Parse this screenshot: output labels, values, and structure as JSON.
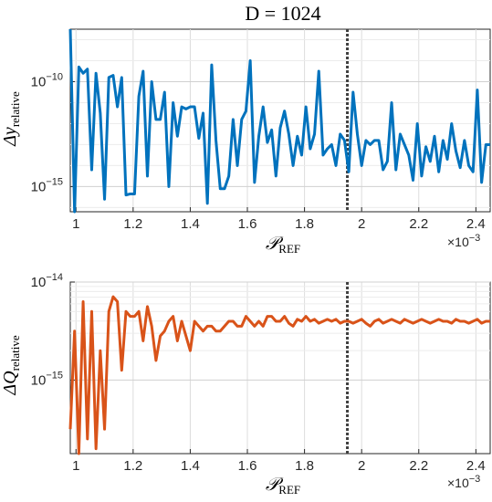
{
  "title": "D = 1024",
  "chart_data": [
    {
      "type": "line",
      "ylabel": "Δy_relative",
      "xlabel": "𝒫_REF",
      "x_exponent": "×10^-3",
      "yscale": "log",
      "xlim": [
        0.98,
        2.45
      ],
      "ylim_log10": [
        -16.2,
        -7.5
      ],
      "ytick_labels": [
        "10^-10",
        "10^-15"
      ],
      "xtick_labels": [
        "1",
        "1.2",
        "1.4",
        "1.6",
        "1.8",
        "2",
        "2.2",
        "2.4"
      ],
      "grid": true,
      "color": "#0072BD",
      "vline_x": 1.95,
      "series": [
        {
          "x": [
            0.98,
            0.995,
            1.01,
            1.025,
            1.04,
            1.055,
            1.07,
            1.085,
            1.1,
            1.115,
            1.13,
            1.145,
            1.16,
            1.175,
            1.19,
            1.205,
            1.22,
            1.235,
            1.25,
            1.265,
            1.28,
            1.295,
            1.31,
            1.325,
            1.34,
            1.355,
            1.37,
            1.385,
            1.4,
            1.415,
            1.43,
            1.445,
            1.46,
            1.475,
            1.49,
            1.505,
            1.52,
            1.535,
            1.55,
            1.565,
            1.58,
            1.595,
            1.61,
            1.625,
            1.64,
            1.655,
            1.67,
            1.685,
            1.7,
            1.715,
            1.73,
            1.745,
            1.76,
            1.775,
            1.79,
            1.805,
            1.82,
            1.835,
            1.85,
            1.865,
            1.88,
            1.895,
            1.91,
            1.925,
            1.94,
            1.955,
            1.97,
            1.985,
            2.0,
            2.015,
            2.03,
            2.045,
            2.06,
            2.075,
            2.09,
            2.105,
            2.12,
            2.135,
            2.15,
            2.165,
            2.18,
            2.195,
            2.21,
            2.225,
            2.24,
            2.255,
            2.27,
            2.285,
            2.3,
            2.315,
            2.33,
            2.345,
            2.36,
            2.375,
            2.39,
            2.405,
            2.42,
            2.435,
            2.45
          ],
          "log10_y": [
            -7.5,
            -16.2,
            -9.3,
            -9.6,
            -9.4,
            -14.2,
            -9.6,
            -11.5,
            -15.6,
            -9.8,
            -9.7,
            -11.2,
            -9.8,
            -15.4,
            -15.35,
            -15.35,
            -10.7,
            -9.5,
            -14.5,
            -10.0,
            -11.8,
            -11.8,
            -10.5,
            -15.0,
            -11.0,
            -12.6,
            -11.2,
            -11.3,
            -11.2,
            -11.2,
            -12.7,
            -11.5,
            -15.8,
            -9.2,
            -12.8,
            -15.1,
            -15.1,
            -14.5,
            -11.8,
            -14.0,
            -11.8,
            -11.4,
            -9.0,
            -14.8,
            -12.6,
            -11.2,
            -12.9,
            -12.3,
            -14.5,
            -12.2,
            -11.4,
            -12.5,
            -14.0,
            -12.6,
            -13.5,
            -11.2,
            -13.2,
            -12.5,
            -9.5,
            -13.5,
            -13.2,
            -13.0,
            -14.0,
            -12.5,
            -12.8,
            -14.3,
            -10.5,
            -12.5,
            -14.0,
            -12.8,
            -13.0,
            -12.8,
            -12.8,
            -14.2,
            -13.8,
            -11.0,
            -14.2,
            -12.5,
            -13.0,
            -13.5,
            -14.7,
            -12.0,
            -14.5,
            -13.1,
            -13.8,
            -12.6,
            -14.3,
            -12.8,
            -13.7,
            -12.0,
            -13.3,
            -14.1,
            -12.8,
            -14.0,
            -14.3,
            -10.4,
            -14.8,
            -13.0,
            -13.0
          ]
        }
      ]
    },
    {
      "type": "line",
      "ylabel": "ΔQ_relative",
      "xlabel": "𝒫_REF",
      "x_exponent": "×10^-3",
      "yscale": "log",
      "xlim": [
        0.98,
        2.45
      ],
      "ylim_log10": [
        -15.75,
        -14.0
      ],
      "ytick_labels": [
        "10^-14",
        "10^-15"
      ],
      "xtick_labels": [
        "1",
        "1.2",
        "1.4",
        "1.6",
        "1.8",
        "2",
        "2.2",
        "2.4"
      ],
      "grid": true,
      "color": "#D95319",
      "vline_x": 1.95,
      "series": [
        {
          "x": [
            0.98,
            0.995,
            1.01,
            1.025,
            1.04,
            1.055,
            1.07,
            1.085,
            1.1,
            1.115,
            1.13,
            1.145,
            1.16,
            1.175,
            1.19,
            1.205,
            1.22,
            1.235,
            1.25,
            1.265,
            1.28,
            1.295,
            1.31,
            1.325,
            1.34,
            1.355,
            1.37,
            1.385,
            1.4,
            1.415,
            1.43,
            1.445,
            1.46,
            1.475,
            1.49,
            1.505,
            1.52,
            1.535,
            1.55,
            1.565,
            1.58,
            1.595,
            1.61,
            1.625,
            1.64,
            1.655,
            1.67,
            1.685,
            1.7,
            1.715,
            1.73,
            1.745,
            1.76,
            1.775,
            1.79,
            1.805,
            1.82,
            1.835,
            1.85,
            1.865,
            1.88,
            1.895,
            1.91,
            1.925,
            1.94,
            1.955,
            1.97,
            1.985,
            2.0,
            2.015,
            2.03,
            2.045,
            2.06,
            2.075,
            2.09,
            2.105,
            2.12,
            2.135,
            2.15,
            2.165,
            2.18,
            2.195,
            2.21,
            2.225,
            2.24,
            2.255,
            2.27,
            2.285,
            2.3,
            2.315,
            2.33,
            2.345,
            2.36,
            2.375,
            2.39,
            2.405,
            2.42,
            2.435,
            2.45
          ],
          "log10_y": [
            -15.5,
            -14.5,
            -15.75,
            -14.2,
            -15.6,
            -14.3,
            -15.7,
            -14.7,
            -15.5,
            -14.3,
            -14.15,
            -14.2,
            -14.9,
            -14.3,
            -14.35,
            -14.35,
            -14.3,
            -14.6,
            -14.25,
            -14.45,
            -14.8,
            -14.55,
            -14.5,
            -14.4,
            -14.35,
            -14.6,
            -14.4,
            -14.55,
            -14.7,
            -14.4,
            -14.45,
            -14.5,
            -14.45,
            -14.45,
            -14.5,
            -14.5,
            -14.45,
            -14.4,
            -14.4,
            -14.45,
            -14.45,
            -14.35,
            -14.4,
            -14.45,
            -14.4,
            -14.45,
            -14.35,
            -14.35,
            -14.4,
            -14.4,
            -14.35,
            -14.42,
            -14.45,
            -14.38,
            -14.4,
            -14.35,
            -14.4,
            -14.38,
            -14.42,
            -14.4,
            -14.38,
            -14.4,
            -14.38,
            -14.42,
            -14.4,
            -14.4,
            -14.42,
            -14.4,
            -14.38,
            -14.42,
            -14.45,
            -14.4,
            -14.38,
            -14.42,
            -14.4,
            -14.38,
            -14.4,
            -14.42,
            -14.38,
            -14.4,
            -14.42,
            -14.4,
            -14.38,
            -14.4,
            -14.42,
            -14.4,
            -14.38,
            -14.4,
            -14.4,
            -14.42,
            -14.38,
            -14.4,
            -14.4,
            -14.42,
            -14.4,
            -14.38,
            -14.42,
            -14.4,
            -14.4
          ]
        }
      ]
    }
  ]
}
